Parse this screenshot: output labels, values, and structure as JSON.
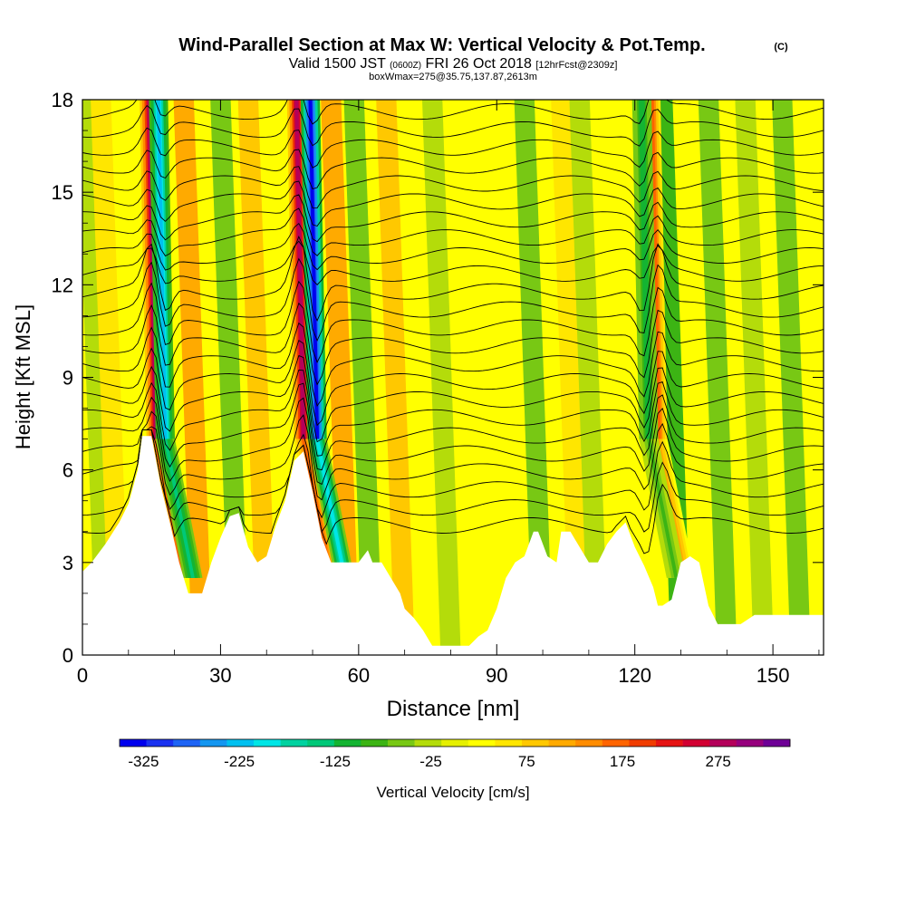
{
  "header": {
    "title": "Wind-Parallel Section at Max W: Vertical Velocity & Pot.Temp.",
    "copyright": "(C)",
    "valid_prefix": "Valid 1500 JST",
    "valid_utc": "(0600Z)",
    "valid_date": "FRI 26 Oct 2018",
    "forecast": "[12hrFcst@2309z]",
    "box_info": "boxWmax=275@35.75,137.87,2613m"
  },
  "chart_data": {
    "type": "heatmap",
    "title": "Wind-Parallel Section at Max W: Vertical Velocity & Pot.Temp.",
    "xlabel": "Distance [nm]",
    "ylabel": "Height [Kft MSL]",
    "xlim": [
      0,
      161
    ],
    "ylim": [
      0,
      18
    ],
    "x_ticks": [
      0,
      30,
      60,
      90,
      120,
      150
    ],
    "y_ticks": [
      0,
      3,
      6,
      9,
      12,
      15,
      18
    ],
    "grid": false,
    "colorbar": {
      "label": "Vertical Velocity [cm/s]",
      "tick_labels": [
        "-325",
        "-225",
        "-125",
        "-25",
        "75",
        "175",
        "275"
      ],
      "tick_values": [
        -325,
        -225,
        -125,
        -25,
        75,
        175,
        275
      ],
      "range": [
        -350,
        350
      ],
      "colors": [
        "#0000ee",
        "#1a32f0",
        "#1e64f5",
        "#1496f0",
        "#00c0f0",
        "#00e6e6",
        "#00d2a0",
        "#00c878",
        "#14b432",
        "#3cb414",
        "#78c814",
        "#b4dc0a",
        "#e6f000",
        "#ffff00",
        "#ffe600",
        "#ffc800",
        "#ffaa00",
        "#ff8c00",
        "#ff6400",
        "#f03c00",
        "#e61414",
        "#d20032",
        "#b4005a",
        "#96007d",
        "#6e0096"
      ]
    },
    "terrain_kft": [
      [
        0,
        2.7
      ],
      [
        2,
        3.0
      ],
      [
        5,
        3.6
      ],
      [
        8,
        4.3
      ],
      [
        10,
        4.9
      ],
      [
        12,
        6.0
      ],
      [
        13,
        7.1
      ],
      [
        15,
        7.1
      ],
      [
        17,
        5.5
      ],
      [
        19,
        4.3
      ],
      [
        21,
        3.0
      ],
      [
        23,
        2.0
      ],
      [
        26,
        2.0
      ],
      [
        28,
        3.0
      ],
      [
        30,
        3.8
      ],
      [
        32,
        4.5
      ],
      [
        34,
        4.6
      ],
      [
        36,
        3.5
      ],
      [
        38,
        3.0
      ],
      [
        40,
        3.2
      ],
      [
        42,
        4.2
      ],
      [
        44,
        5.0
      ],
      [
        46,
        6.3
      ],
      [
        48,
        6.6
      ],
      [
        50,
        5.3
      ],
      [
        52,
        3.8
      ],
      [
        54,
        3.0
      ],
      [
        57,
        3.0
      ],
      [
        60,
        3.0
      ],
      [
        62,
        3.4
      ],
      [
        63,
        3.0
      ],
      [
        65,
        3.0
      ],
      [
        67,
        2.5
      ],
      [
        69,
        2.0
      ],
      [
        70,
        1.5
      ],
      [
        72,
        1.2
      ],
      [
        74,
        0.8
      ],
      [
        76,
        0.3
      ],
      [
        80,
        0.3
      ],
      [
        84,
        0.3
      ],
      [
        86,
        0.6
      ],
      [
        88,
        0.8
      ],
      [
        90,
        1.5
      ],
      [
        92,
        2.5
      ],
      [
        94,
        3.0
      ],
      [
        96,
        3.2
      ],
      [
        98,
        4.0
      ],
      [
        99,
        4.0
      ],
      [
        101,
        3.2
      ],
      [
        103,
        3.0
      ],
      [
        104,
        4.0
      ],
      [
        106,
        4.0
      ],
      [
        108,
        3.5
      ],
      [
        110,
        3.0
      ],
      [
        112,
        3.0
      ],
      [
        114,
        3.6
      ],
      [
        116,
        4.0
      ],
      [
        118,
        4.3
      ],
      [
        120,
        3.5
      ],
      [
        122,
        2.9
      ],
      [
        124,
        2.2
      ],
      [
        125,
        1.6
      ],
      [
        126,
        1.6
      ],
      [
        128,
        1.8
      ],
      [
        130,
        3.0
      ],
      [
        132,
        3.2
      ],
      [
        134,
        3.0
      ],
      [
        136,
        1.6
      ],
      [
        138,
        1.0
      ],
      [
        143,
        1.0
      ],
      [
        146,
        1.3
      ],
      [
        150,
        1.3
      ],
      [
        156,
        1.3
      ],
      [
        161,
        1.3
      ]
    ],
    "updraft_cores": [
      {
        "x": 16,
        "w": 275
      },
      {
        "x": 48,
        "w": 275
      },
      {
        "x": 125,
        "w": 175
      }
    ],
    "downdraft_cores": [
      {
        "x": 18,
        "w": -225
      },
      {
        "x": 51,
        "w": -325
      },
      {
        "x": 123,
        "w": -125
      }
    ],
    "theta_contour_count": 24
  }
}
